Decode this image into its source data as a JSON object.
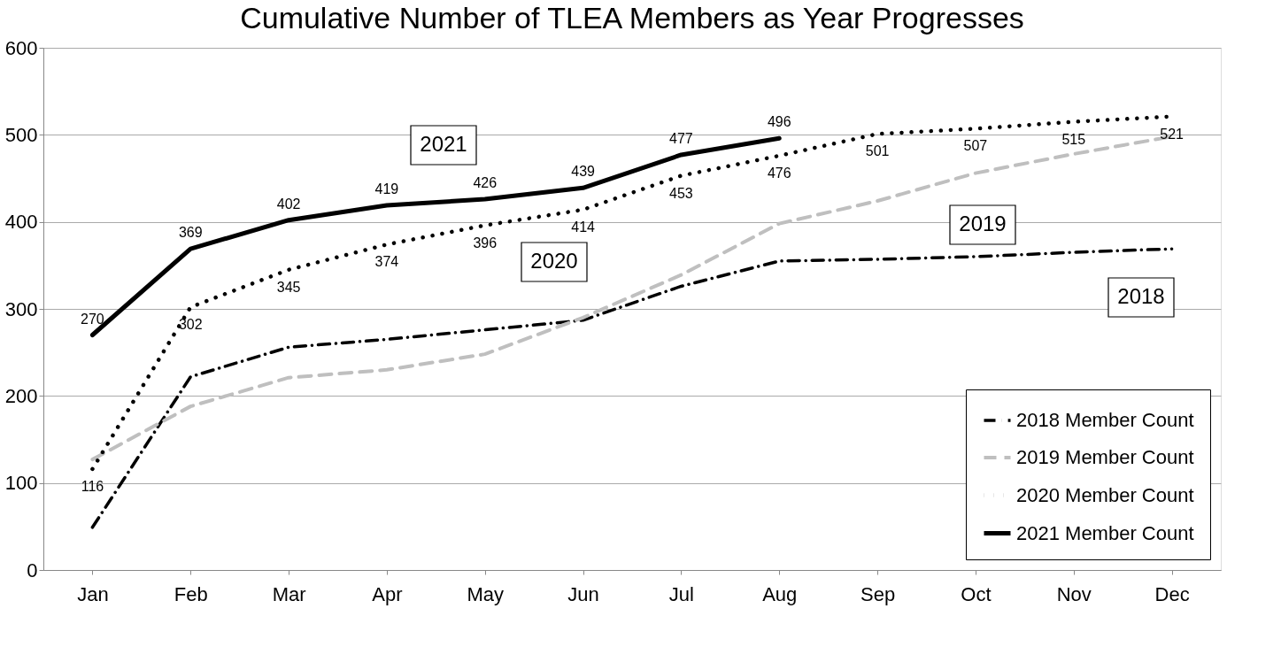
{
  "chart_data": {
    "type": "line",
    "title": "Cumulative Number of TLEA Members as Year Progresses",
    "categories": [
      "Jan",
      "Feb",
      "Mar",
      "Apr",
      "May",
      "Jun",
      "Jul",
      "Aug",
      "Sep",
      "Oct",
      "Nov",
      "Dec"
    ],
    "series": [
      {
        "name": "2018 Member Count",
        "color": "#000000",
        "line_style": "dashdot",
        "values": [
          49,
          222,
          256,
          265,
          276,
          287,
          326,
          355,
          357,
          360,
          365,
          369
        ]
      },
      {
        "name": "2019 Member Count",
        "color": "#bfbfbf",
        "line_style": "dashed",
        "values": [
          127,
          188,
          221,
          230,
          248,
          290,
          339,
          398,
          424,
          456,
          478,
          498
        ]
      },
      {
        "name": "2020 Member Count",
        "color": "#000000",
        "line_style": "dotted",
        "values": [
          116,
          302,
          345,
          374,
          396,
          414,
          453,
          476,
          501,
          507,
          515,
          521
        ],
        "value_labels": [
          "116",
          "302",
          "345",
          "374",
          "396",
          "414",
          "453",
          "476",
          "501",
          "507",
          "515",
          "521"
        ]
      },
      {
        "name": "2021 Member Count",
        "color": "#000000",
        "line_style": "solid",
        "values": [
          270,
          369,
          402,
          419,
          426,
          439,
          477,
          496,
          null,
          null,
          null,
          null
        ],
        "value_labels": [
          "270",
          "369",
          "402",
          "419",
          "426",
          "439",
          "477",
          "496",
          null,
          null,
          null,
          null
        ]
      }
    ],
    "ylim": [
      0,
      600
    ],
    "yticks": [
      0,
      100,
      200,
      300,
      400,
      500,
      600
    ],
    "grid": "y",
    "legend": "bottom right",
    "annotations": [
      "2021",
      "2020",
      "2019",
      "2018"
    ]
  }
}
